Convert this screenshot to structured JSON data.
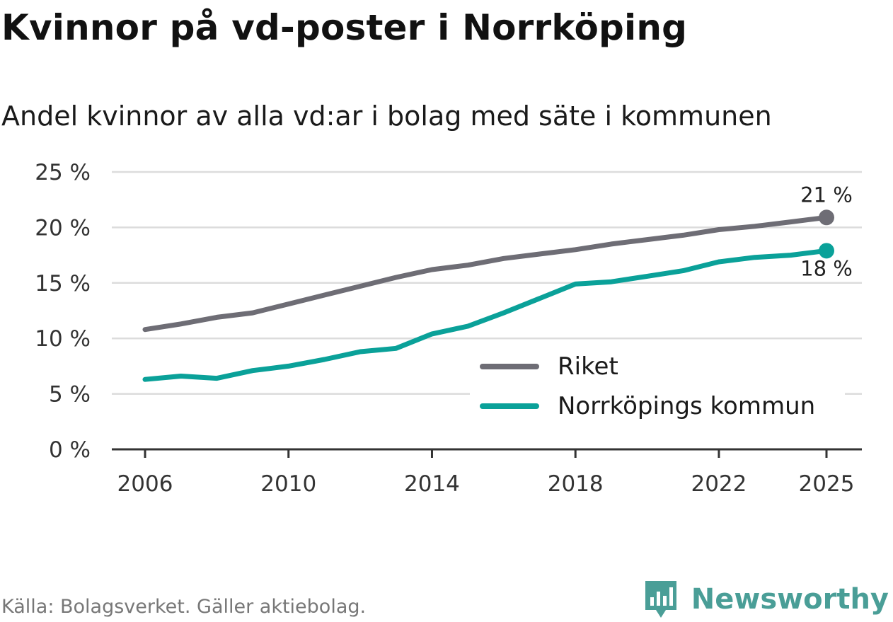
{
  "header": {
    "title": "Kvinnor på vd-poster i Norrköping",
    "subtitle": "Andel kvinnor av alla vd:ar i bolag med säte i kommunen"
  },
  "chart_data": {
    "type": "line",
    "title": "Kvinnor på vd-poster i Norrköping",
    "subtitle": "Andel kvinnor av alla vd:ar i bolag med säte i kommunen",
    "xlabel": "",
    "ylabel": "",
    "x": [
      2006,
      2007,
      2008,
      2009,
      2010,
      2011,
      2012,
      2013,
      2014,
      2015,
      2016,
      2017,
      2018,
      2019,
      2020,
      2021,
      2022,
      2023,
      2024,
      2025
    ],
    "xticks": [
      2006,
      2010,
      2014,
      2018,
      2022,
      2025
    ],
    "xlim": [
      2006,
      2025
    ],
    "ylim": [
      0,
      25
    ],
    "yticks": [
      0,
      5,
      10,
      15,
      20,
      25
    ],
    "ytick_labels": [
      "0 %",
      "5 %",
      "10 %",
      "15 %",
      "20 %",
      "25 %"
    ],
    "grid": true,
    "legend_position": "bottom-right",
    "series": [
      {
        "name": "Riket",
        "color": "#6e6d75",
        "values": [
          10.8,
          11.3,
          11.9,
          12.3,
          13.1,
          13.9,
          14.7,
          15.5,
          16.2,
          16.6,
          17.2,
          17.6,
          18.0,
          18.5,
          18.9,
          19.3,
          19.8,
          20.1,
          20.5,
          20.9
        ],
        "end_label": "21 %"
      },
      {
        "name": "Norrköpings kommun",
        "color": "#0aa199",
        "values": [
          6.3,
          6.6,
          6.4,
          7.1,
          7.5,
          8.1,
          8.8,
          9.1,
          10.4,
          11.1,
          12.3,
          13.6,
          14.9,
          15.1,
          15.6,
          16.1,
          16.9,
          17.3,
          17.5,
          17.9
        ],
        "end_label": "18 %"
      }
    ]
  },
  "legend": {
    "items": [
      {
        "label": "Riket",
        "color": "#6e6d75"
      },
      {
        "label": "Norrköpings kommun",
        "color": "#0aa199"
      }
    ]
  },
  "footer": {
    "source": "Källa: Bolagsverket. Gäller aktiebolag.",
    "brand": "Newsworthy",
    "brand_color": "#4a9e97"
  },
  "icons": {
    "brand_logo": "newsworthy-logo-icon"
  }
}
